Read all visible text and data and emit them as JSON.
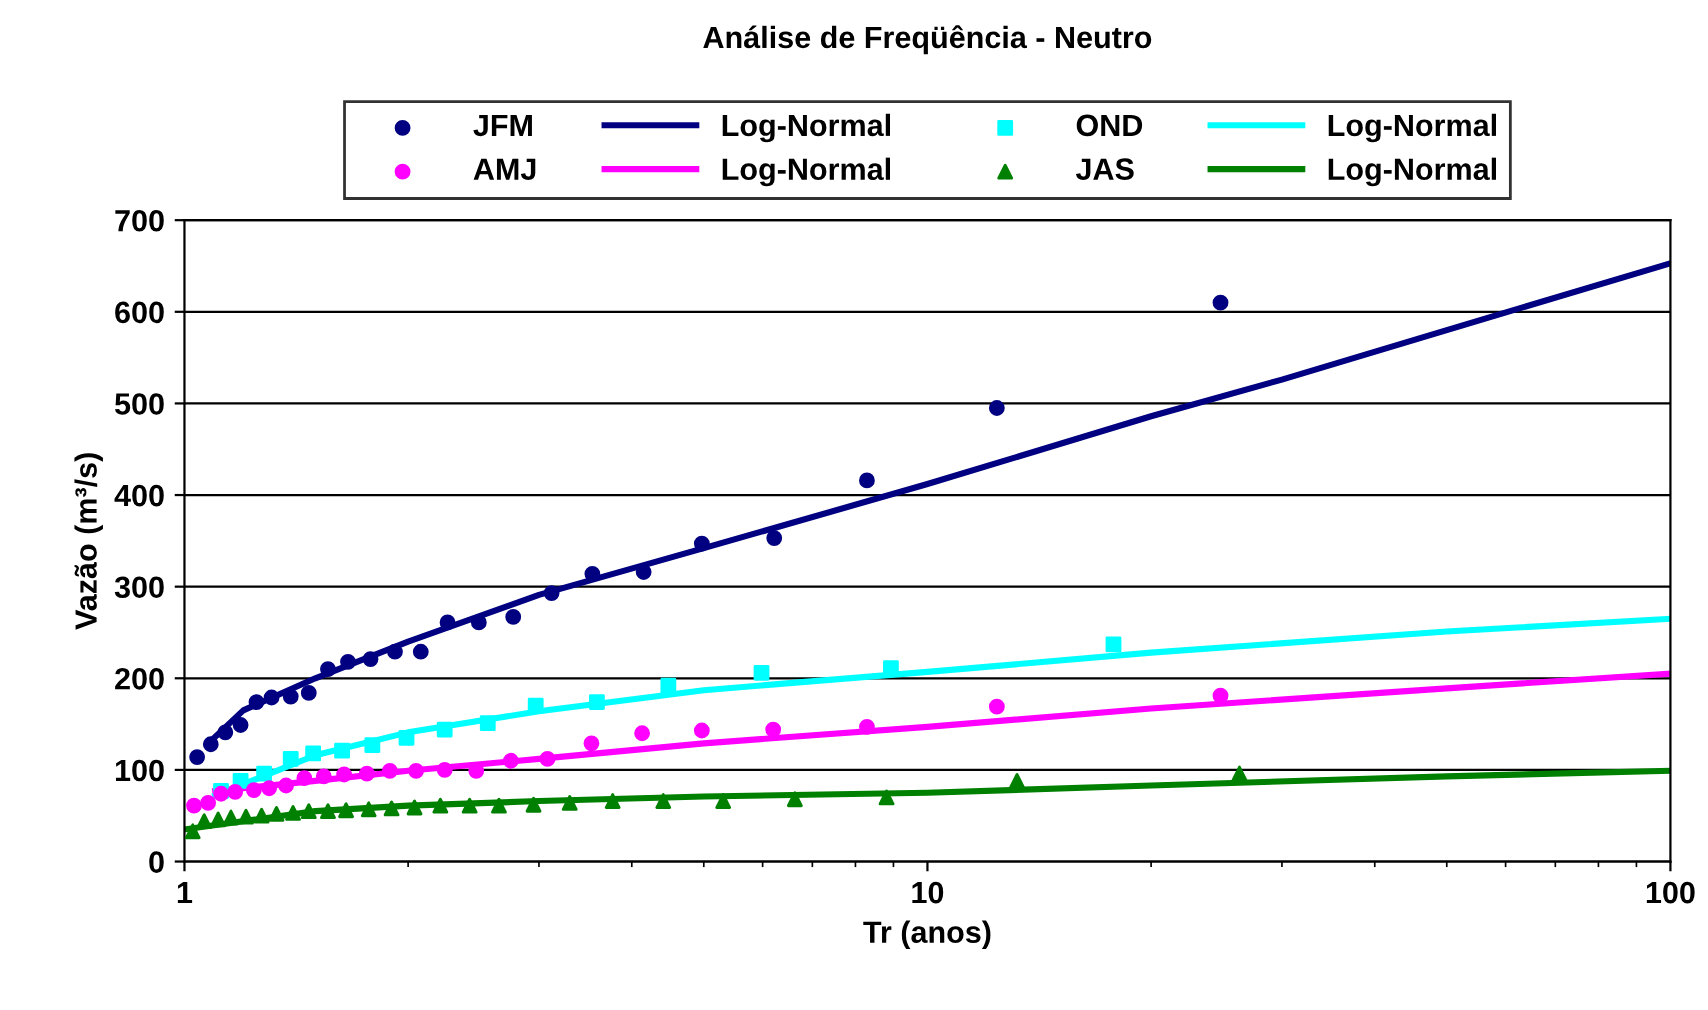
{
  "chart_data": {
    "type": "scatter",
    "title": "Análise de Freqüência - Neutro",
    "xlabel": "Tr (anos)",
    "ylabel": "Vazão (m³/s)",
    "log": "x",
    "xlim": [
      1,
      100
    ],
    "xticks": [
      1,
      10,
      100
    ],
    "ylim": [
      0,
      700
    ],
    "yticks": [
      0,
      100,
      200,
      300,
      400,
      500,
      600,
      700
    ],
    "grid": "y",
    "legend": "top",
    "series": [
      {
        "name": "JFM",
        "marker": "circle",
        "color": "#000080",
        "x": [
          1.04,
          1.085,
          1.135,
          1.19,
          1.25,
          1.31,
          1.39,
          1.47,
          1.56,
          1.66,
          1.78,
          1.92,
          2.08,
          2.26,
          2.49,
          2.77,
          3.12,
          3.54,
          4.15,
          4.97,
          6.22,
          8.29,
          12.4,
          24.8
        ],
        "values": [
          114,
          128,
          141,
          149,
          174,
          179,
          180,
          184,
          210,
          218,
          221,
          229,
          229,
          261,
          261,
          267,
          293,
          314,
          316,
          347,
          353,
          416,
          495,
          610
        ]
      },
      {
        "name": "Log-Normal",
        "type": "line",
        "marker": "none",
        "color": "#000080",
        "x": [
          1.08,
          1.2,
          1.5,
          2,
          3,
          5,
          10,
          20,
          30,
          50,
          100
        ],
        "values": [
          130,
          165,
          200,
          240,
          291,
          342,
          412,
          486,
          526,
          580,
          653
        ]
      },
      {
        "name": "AMJ",
        "marker": "circle",
        "color": "#ff00ff",
        "x": [
          1.03,
          1.076,
          1.12,
          1.17,
          1.24,
          1.3,
          1.37,
          1.45,
          1.54,
          1.64,
          1.76,
          1.89,
          2.05,
          2.24,
          2.47,
          2.75,
          3.08,
          3.53,
          4.13,
          4.97,
          6.2,
          8.29,
          12.4,
          24.8
        ],
        "values": [
          61,
          64,
          74,
          76,
          78,
          80,
          83,
          91,
          93,
          95,
          96,
          99,
          99,
          100,
          99,
          110,
          112,
          129,
          140,
          143,
          144,
          147,
          169,
          181
        ]
      },
      {
        "name": "Log-Normal",
        "type": "line",
        "marker": "none",
        "color": "#ff00ff",
        "x": [
          1.1,
          1.5,
          2,
          3,
          5,
          10,
          20,
          50,
          100
        ],
        "values": [
          77,
          88,
          99,
          112,
          129,
          147,
          167,
          189,
          205
        ]
      },
      {
        "name": "OND",
        "marker": "square",
        "color": "#00ffff",
        "x": [
          1.12,
          1.19,
          1.28,
          1.39,
          1.49,
          1.63,
          1.79,
          1.99,
          2.24,
          2.56,
          2.97,
          3.59,
          4.48,
          5.98,
          8.93,
          17.8
        ],
        "values": [
          77,
          88,
          96,
          112,
          118,
          121,
          127,
          135,
          144,
          151,
          170,
          174,
          192,
          206,
          211,
          237
        ]
      },
      {
        "name": "Log-Normal",
        "type": "line",
        "marker": "none",
        "color": "#00ffff",
        "x": [
          1.1,
          1.5,
          2,
          3,
          5,
          10,
          20,
          50,
          100
        ],
        "values": [
          72,
          116,
          141,
          164,
          187,
          207,
          228,
          251,
          265
        ]
      },
      {
        "name": "JAS",
        "marker": "triangle",
        "color": "#008000",
        "x": [
          1.026,
          1.063,
          1.11,
          1.155,
          1.21,
          1.27,
          1.33,
          1.4,
          1.47,
          1.56,
          1.65,
          1.77,
          1.9,
          2.04,
          2.21,
          2.42,
          2.65,
          2.95,
          3.3,
          3.77,
          4.41,
          5.31,
          6.63,
          8.81,
          13.2,
          26.3
        ],
        "values": [
          33,
          44,
          46,
          48,
          49,
          50,
          52,
          53,
          55,
          55,
          56,
          57,
          58,
          59,
          61,
          61,
          61,
          62,
          64,
          66,
          66,
          66,
          68,
          70,
          88,
          96
        ]
      },
      {
        "name": "Log-Normal",
        "type": "line",
        "marker": "none",
        "color": "#008000",
        "x": [
          1.0,
          1.5,
          2,
          3,
          5,
          10,
          20,
          50,
          100
        ],
        "values": [
          35,
          55,
          61,
          66,
          71,
          75,
          83,
          93,
          99
        ]
      }
    ]
  }
}
